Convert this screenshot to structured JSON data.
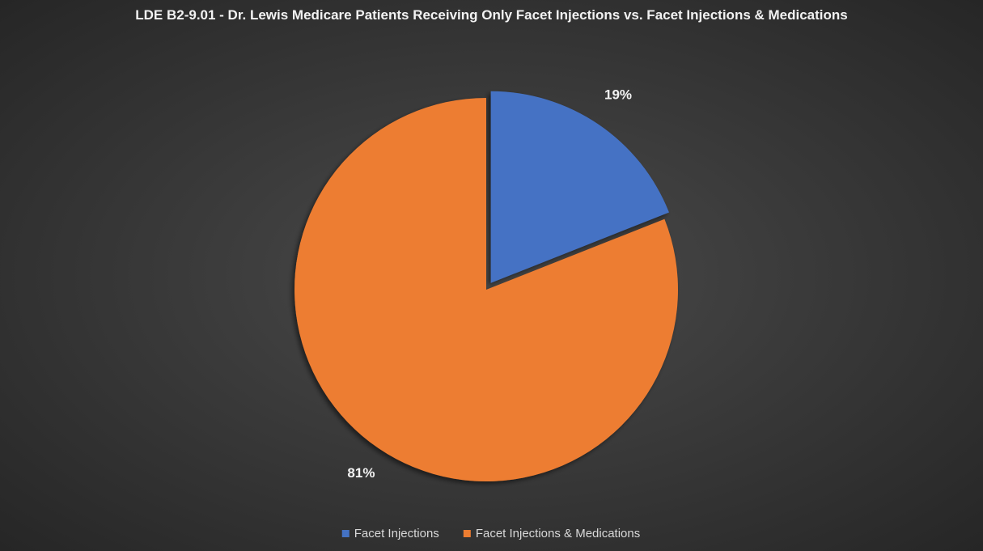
{
  "chart_data": {
    "type": "pie",
    "title": "LDE B2-9.01 - Dr. Lewis Medicare Patients Receiving Only Facet Injections vs. Facet Injections & Medications",
    "categories": [
      "Facet Injections",
      "Facet Injections & Medications"
    ],
    "values": [
      19,
      81
    ],
    "value_labels": [
      "19%",
      "81%"
    ],
    "colors": [
      "#4472c4",
      "#ed7d31"
    ],
    "legend": "bottom"
  }
}
